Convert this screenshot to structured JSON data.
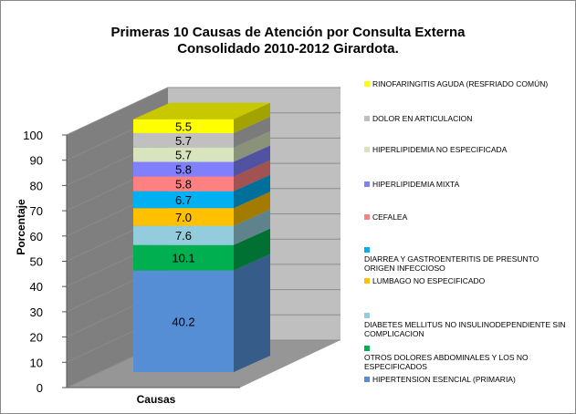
{
  "chart_data": {
    "type": "bar",
    "stacked": true,
    "three_d": true,
    "title": "Primeras 10 Causas de Atención por Consulta Externa",
    "subtitle": "Consolidado  2010-2012 Girardota.",
    "xlabel": "Causas",
    "ylabel": "Porcentaje",
    "ylim": [
      0,
      100
    ],
    "yticks": [
      0,
      10,
      20,
      30,
      40,
      50,
      60,
      70,
      80,
      90,
      100
    ],
    "legend_position": "right",
    "series": [
      {
        "name": "HIPERTENSION ESENCIAL (PRIMARIA)",
        "value": 40.2,
        "color": "#558ED5",
        "side": "#365C8A",
        "label": "40.2"
      },
      {
        "name": "OTROS DOLORES ABDOMINALES Y LOS NO ESPECIFICADOS",
        "value": 10.1,
        "color": "#00B050",
        "side": "#007033",
        "label": "10.1"
      },
      {
        "name": "DIABETES MELLITUS NO INSULINODEPENDIENTE SIN COMPLICACION",
        "value": 7.6,
        "color": "#93CDDD",
        "side": "#5E838D",
        "label": "7.6"
      },
      {
        "name": "LUMBAGO NO ESPECIFICADO",
        "value": 7.0,
        "color": "#FFC000",
        "side": "#A37B00",
        "label": "7.0"
      },
      {
        "name": "DIARREA Y GASTROENTERITIS  DE PRESUNTO ORIGEN INFECCIOSO",
        "value": 6.7,
        "color": "#00B0F0",
        "side": "#00709A",
        "label": "6.7"
      },
      {
        "name": "CEFALEA",
        "value": 5.8,
        "color": "#FF8080",
        "side": "#A35252",
        "label": "5.8"
      },
      {
        "name": "HIPERLIPIDEMIA MIXTA",
        "value": 5.8,
        "color": "#8080FF",
        "side": "#5252A3",
        "label": "5.8"
      },
      {
        "name": "HIPERLIPIDEMIA NO ESPECIFICADA",
        "value": 5.7,
        "color": "#D7E4BD",
        "side": "#8A9279",
        "label": "5.7"
      },
      {
        "name": "DOLOR EN ARTICULACION",
        "value": 5.7,
        "color": "#C0C0C0",
        "side": "#7B7B7B",
        "label": "5.7"
      },
      {
        "name": "RINOFARINGITIS AGUDA (RESFRIADO COMÚN)",
        "value": 5.5,
        "color": "#FFFF00",
        "side": "#A3A300",
        "label": "5.5",
        "top": "#C8C800"
      }
    ]
  }
}
